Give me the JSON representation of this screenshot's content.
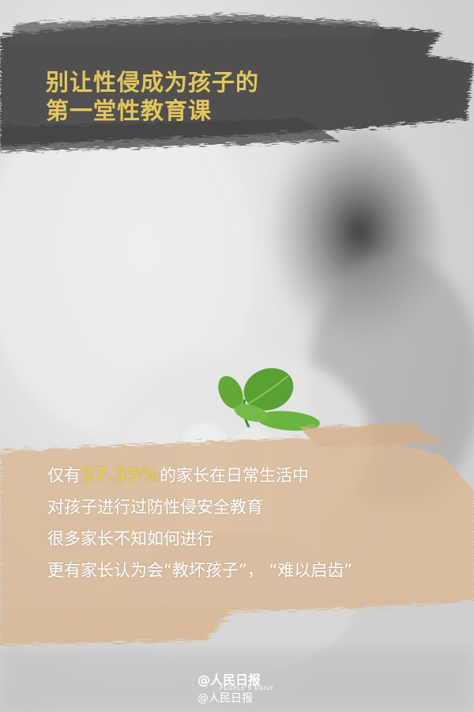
{
  "title": {
    "line1": "别让性侵成为孩子的",
    "line2": "第一堂性教育课"
  },
  "body": {
    "line1_prefix": "仅有",
    "line1_percent": "37.35%",
    "line1_suffix": "的家长在日常生活中",
    "line2": "对孩子进行过防性侵安全教育",
    "line3": "很多家长不知如何进行",
    "line4": "更有家长认为会“教坏孩子”， “难以启齿”"
  },
  "watermark": {
    "brand": "@人民日报",
    "subtitle": "PEOPLE'S DAILY",
    "handle": "@人民日报"
  },
  "colors": {
    "accent_gold": "#e2c75d",
    "brush_dark": "#3a3a3a",
    "brush_tan": "#d9b894",
    "leaf_green": "#5aa032"
  }
}
